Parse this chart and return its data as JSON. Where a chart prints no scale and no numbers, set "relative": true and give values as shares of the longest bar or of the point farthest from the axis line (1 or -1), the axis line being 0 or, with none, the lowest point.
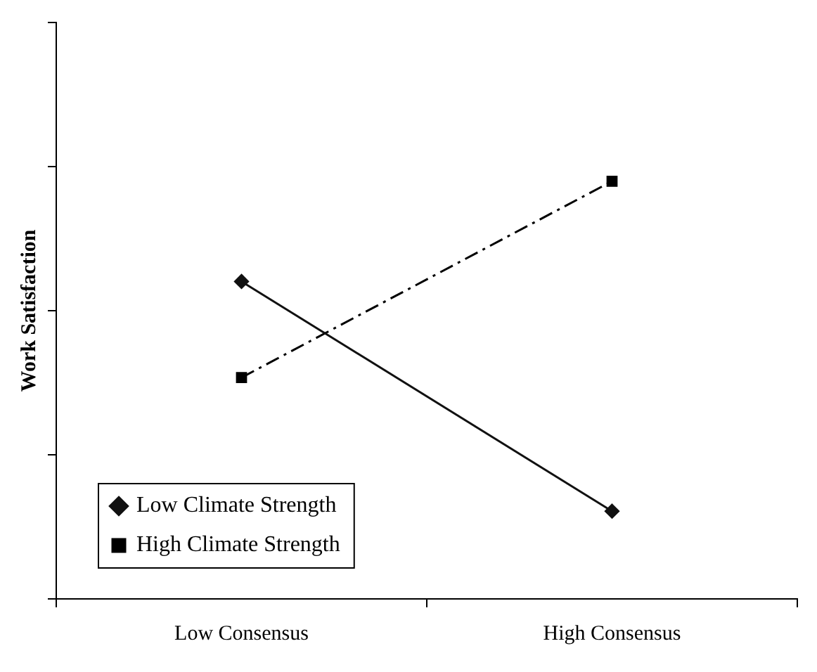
{
  "chart_data": {
    "type": "line",
    "ylabel": "Work Satisfaction",
    "categories": [
      "Low Consensus",
      "High Consensus"
    ],
    "relative": true,
    "legend": "bottom left",
    "series": [
      {
        "name": "Low Climate Strength",
        "color": "#111111",
        "values": [
          0.76,
          0.21
        ],
        "marker": "diamond",
        "line_style": "solid"
      },
      {
        "name": "High Climate Strength",
        "color": "#000000",
        "values": [
          0.53,
          1
        ],
        "marker": "square",
        "line_style": "dashed"
      }
    ]
  }
}
